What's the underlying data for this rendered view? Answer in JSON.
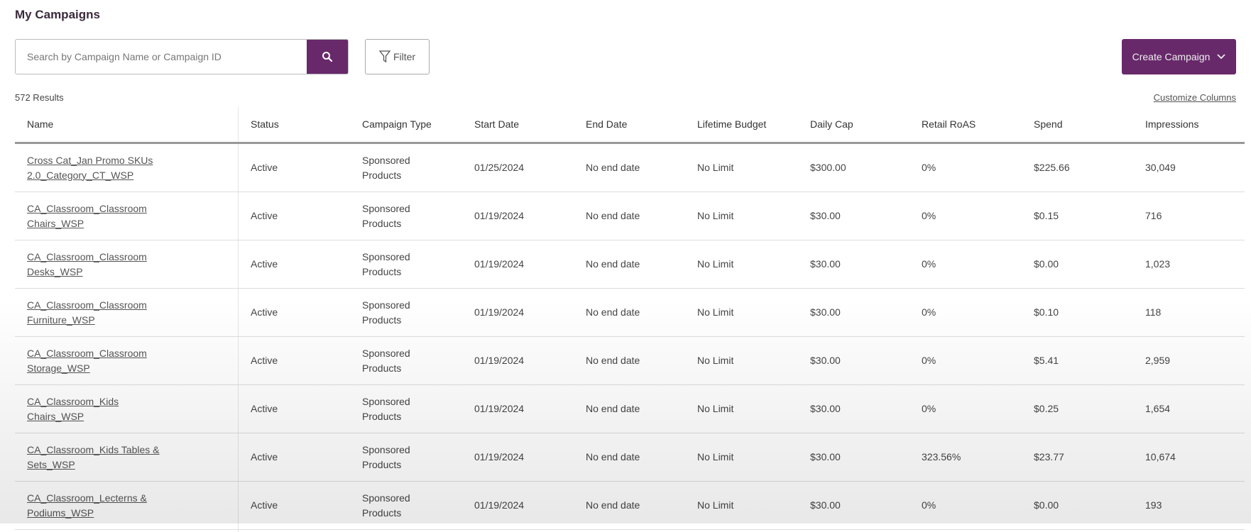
{
  "page": {
    "title": "My Campaigns",
    "results": "572 Results",
    "customize_columns": "Customize Columns"
  },
  "search": {
    "placeholder": "Search by Campaign Name or Campaign ID",
    "icon": "search-icon"
  },
  "filter": {
    "label": "Filter",
    "icon": "filter-icon"
  },
  "create": {
    "label": "Create Campaign",
    "icon": "chevron-down-icon"
  },
  "colors": {
    "brand": "#68296b"
  },
  "columns": [
    "Name",
    "Status",
    "Campaign Type",
    "Start Date",
    "End Date",
    "Lifetime Budget",
    "Daily Cap",
    "Retail RoAS",
    "Spend",
    "Impressions"
  ],
  "rows": [
    [
      "Cross Cat_Jan Promo SKUs 2.0_Category_CT_WSP",
      "Active",
      "Sponsored Products",
      "01/25/2024",
      "No end date",
      "No Limit",
      "$300.00",
      "0%",
      "$225.66",
      "30,049"
    ],
    [
      "CA_Classroom_Classroom Chairs_WSP",
      "Active",
      "Sponsored Products",
      "01/19/2024",
      "No end date",
      "No Limit",
      "$30.00",
      "0%",
      "$0.15",
      "716"
    ],
    [
      "CA_Classroom_Classroom Desks_WSP",
      "Active",
      "Sponsored Products",
      "01/19/2024",
      "No end date",
      "No Limit",
      "$30.00",
      "0%",
      "$0.00",
      "1,023"
    ],
    [
      "CA_Classroom_Classroom Furniture_WSP",
      "Active",
      "Sponsored Products",
      "01/19/2024",
      "No end date",
      "No Limit",
      "$30.00",
      "0%",
      "$0.10",
      "118"
    ],
    [
      "CA_Classroom_Classroom Storage_WSP",
      "Active",
      "Sponsored Products",
      "01/19/2024",
      "No end date",
      "No Limit",
      "$30.00",
      "0%",
      "$5.41",
      "2,959"
    ],
    [
      "CA_Classroom_Kids Chairs_WSP",
      "Active",
      "Sponsored Products",
      "01/19/2024",
      "No end date",
      "No Limit",
      "$30.00",
      "0%",
      "$0.25",
      "1,654"
    ],
    [
      "CA_Classroom_Kids Tables & Sets_WSP",
      "Active",
      "Sponsored Products",
      "01/19/2024",
      "No end date",
      "No Limit",
      "$30.00",
      "323.56%",
      "$23.77",
      "10,674"
    ],
    [
      "CA_Classroom_Lecterns & Podiums_WSP",
      "Active",
      "Sponsored Products",
      "01/19/2024",
      "No end date",
      "No Limit",
      "$30.00",
      "0%",
      "$0.00",
      "193"
    ]
  ]
}
